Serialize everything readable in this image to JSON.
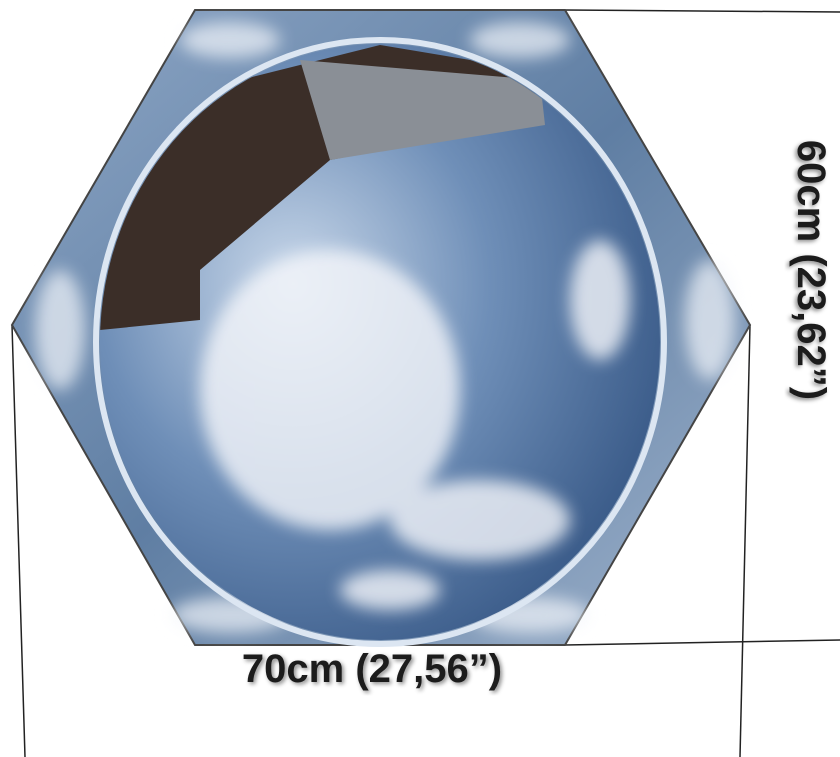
{
  "width_label": "70cm (27,56”)",
  "height_label": "60cm (23,62”)"
}
